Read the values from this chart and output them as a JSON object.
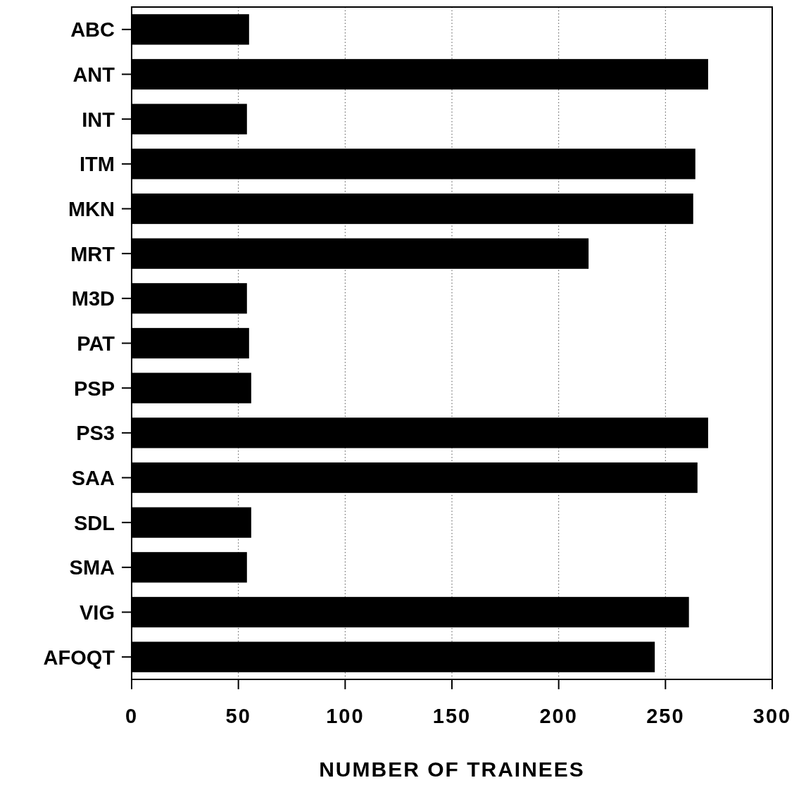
{
  "chart_data": {
    "type": "bar",
    "orientation": "horizontal",
    "xlabel": "NUMBER OF TRAINEES",
    "categories": [
      "ABC",
      "ANT",
      "INT",
      "ITM",
      "MKN",
      "MRT",
      "M3D",
      "PAT",
      "PSP",
      "PS3",
      "SAA",
      "SDL",
      "SMA",
      "VIG",
      "AFOQT"
    ],
    "values": [
      55,
      270,
      54,
      264,
      263,
      214,
      54,
      55,
      56,
      270,
      265,
      56,
      54,
      261,
      245
    ],
    "color": "#000000",
    "xlim": [
      0,
      300
    ],
    "xticks": [
      0,
      50,
      100,
      150,
      200,
      250,
      300
    ],
    "grid": "x"
  }
}
